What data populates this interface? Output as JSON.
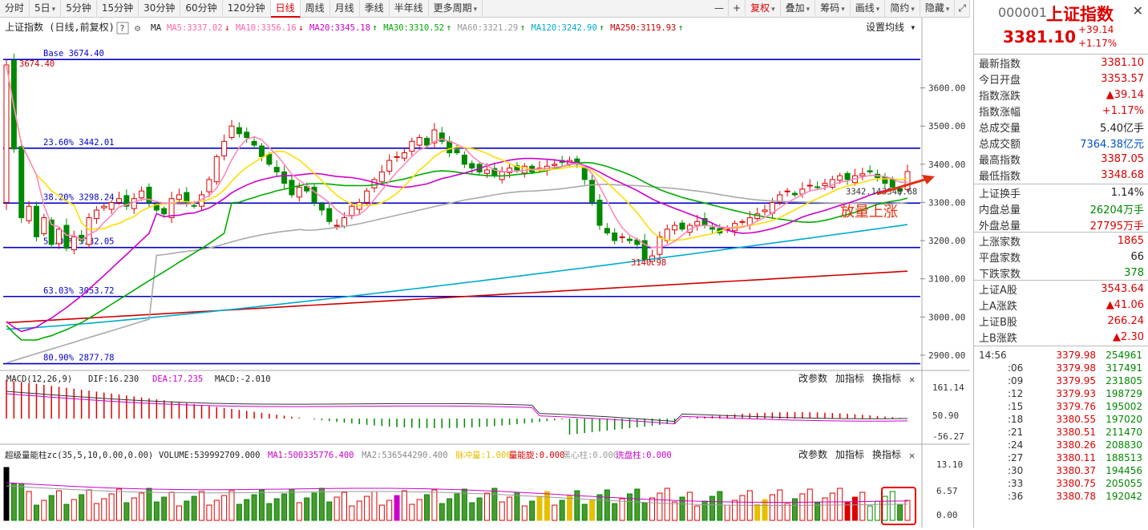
{
  "toolbar": {
    "left_buttons": [
      "分时",
      "5日",
      "5分钟",
      "15分钟",
      "30分钟",
      "60分钟",
      "120分钟",
      "日线",
      "周线",
      "月线",
      "季线",
      "半年线",
      "更多周期"
    ],
    "active": "日线",
    "right_buttons": [
      "复权",
      "叠加",
      "筹码",
      "画线",
      "简约",
      "隐藏"
    ],
    "nav_buttons": [
      "—",
      "+",
      "─"
    ]
  },
  "chart_header": {
    "title": "上证指数 (日线,前复权)",
    "help": "?",
    "ma_label": "MA",
    "ma_items": [
      {
        "text": "MA5:3337.02",
        "arrow": "↓",
        "color": "#ff66aa"
      },
      {
        "text": "MA10:3356.16",
        "arrow": "↓",
        "color": "#ff66aa"
      },
      {
        "text": "MA20:3345.18",
        "arrow": "↑",
        "color": "#cc00cc"
      },
      {
        "text": "MA30:3310.52",
        "arrow": "↑",
        "color": "#00aa00"
      },
      {
        "text": "MA60:3321.29",
        "arrow": "↑",
        "color": "#999999"
      },
      {
        "text": "MA120:3242.90",
        "arrow": "↑",
        "color": "#00aacc"
      },
      {
        "text": "MA250:3119.93",
        "arrow": "↑",
        "color": "#cc0000"
      }
    ],
    "settings": "设置均线"
  },
  "fib_levels": [
    {
      "label": "Base  3674.40",
      "value": 3674.4
    },
    {
      "label": "23.60% 3442.01",
      "value": 3442.01
    },
    {
      "label": "38.20% 3298.24",
      "value": 3298.24
    },
    {
      "label": "50.00% 3182.05",
      "value": 3182.05
    },
    {
      "label": "63.03% 3053.72",
      "value": 3053.72
    },
    {
      "label": "80.90% 2877.78",
      "value": 2877.78
    }
  ],
  "price_axis": [
    "3600.00",
    "3500.00",
    "3400.00",
    "3300.00",
    "3200.00",
    "3100.00",
    "3000.00",
    "2900.00"
  ],
  "annotations": {
    "high_label": "3674.40",
    "low_label": "3140.98",
    "last_label": "3342.14",
    "last_label2": "3348.68",
    "callout": "放量上涨"
  },
  "macd": {
    "title": "MACD(12,26,9)",
    "dif": "DIF:16.230",
    "dea": "DEA:17.235",
    "macd": "MACD:-2.010",
    "buttons": [
      "改参数",
      "加指标",
      "换指标"
    ],
    "axis": [
      "161.14",
      "50.90",
      "-56.27"
    ]
  },
  "volume": {
    "title": "超级量能柱zc(35,5,10,0.00,0.00)",
    "items": [
      {
        "text": "VOLUME:539992709.000",
        "color": "#222"
      },
      {
        "text": "MA1:500335776.400",
        "color": "#cc00cc"
      },
      {
        "text": "MA2:536544290.400",
        "color": "#888"
      },
      {
        "text": "脉冲量:1.000",
        "color": "#e6c000"
      },
      {
        "text": "量能旋:0.000",
        "color": "#d00"
      },
      {
        "text": "黑心柱:0.000",
        "color": "#999"
      },
      {
        "text": "洗盘柱:0.000",
        "color": "#cc00cc"
      }
    ],
    "buttons": [
      "改参数",
      "加指标",
      "换指标"
    ],
    "axis": [
      "13.10",
      "6.57",
      "0.00"
    ]
  },
  "chart_data": {
    "type": "candlestick",
    "title": "上证指数 (日线,前复权)",
    "ylim": [
      2860,
      3700
    ],
    "ma_values": {
      "MA5": 3337.02,
      "MA10": 3356.16,
      "MA20": 3345.18,
      "MA30": 3310.52,
      "MA60": 3321.29,
      "MA120": 3242.9,
      "MA250": 3119.93
    },
    "closes": [
      3674,
      3440,
      3260,
      3290,
      3210,
      3260,
      3190,
      3230,
      3180,
      3210,
      3200,
      3260,
      3280,
      3290,
      3300,
      3310,
      3290,
      3310,
      3330,
      3300,
      3280,
      3270,
      3310,
      3320,
      3300,
      3290,
      3320,
      3360,
      3420,
      3460,
      3500,
      3480,
      3470,
      3450,
      3420,
      3400,
      3380,
      3350,
      3320,
      3340,
      3330,
      3300,
      3280,
      3250,
      3240,
      3260,
      3290,
      3300,
      3330,
      3360,
      3380,
      3410,
      3420,
      3430,
      3460,
      3470,
      3450,
      3490,
      3460,
      3430,
      3430,
      3400,
      3390,
      3380,
      3385,
      3370,
      3380,
      3390,
      3385,
      3395,
      3380,
      3390,
      3395,
      3400,
      3405,
      3410,
      3400,
      3360,
      3300,
      3240,
      3220,
      3200,
      3210,
      3200,
      3190,
      3150,
      3160,
      3210,
      3230,
      3240,
      3230,
      3240,
      3250,
      3240,
      3230,
      3220,
      3230,
      3245,
      3250,
      3260,
      3270,
      3280,
      3300,
      3320,
      3330,
      3320,
      3335,
      3345,
      3340,
      3350,
      3360,
      3370,
      3360,
      3370,
      3375,
      3380,
      3365,
      3350,
      3340,
      3330,
      3381
    ]
  },
  "sidebar": {
    "code": "000001",
    "name": "上证指数",
    "price": "3381.10",
    "change": "+39.14",
    "change_pct": "+1.17%",
    "stats1": [
      {
        "label": "最新指数",
        "value": "3381.10",
        "cls": "red"
      },
      {
        "label": "今日开盘",
        "value": "3353.57",
        "cls": "red"
      },
      {
        "label": "指数涨跌",
        "value": "▲39.14",
        "cls": "red"
      },
      {
        "label": "指数涨幅",
        "value": "+1.17%",
        "cls": "red"
      },
      {
        "label": "总成交量",
        "value": "5.40亿手",
        "cls": ""
      },
      {
        "label": "总成交额",
        "value": "7364.38亿元",
        "cls": "blue"
      },
      {
        "label": "最高指数",
        "value": "3387.05",
        "cls": "red"
      },
      {
        "label": "最低指数",
        "value": "3348.68",
        "cls": "red"
      }
    ],
    "stats2": [
      {
        "label": "上证换手",
        "value": "1.14%",
        "cls": ""
      },
      {
        "label": "内盘总量",
        "value": "26204万手",
        "cls": "green"
      },
      {
        "label": "外盘总量",
        "value": "27795万手",
        "cls": "red"
      }
    ],
    "stats3": [
      {
        "label": "上涨家数",
        "value": "1865",
        "cls": "red"
      },
      {
        "label": "平盘家数",
        "value": "66",
        "cls": ""
      },
      {
        "label": "下跌家数",
        "value": "378",
        "cls": "green"
      }
    ],
    "stats4": [
      {
        "label": "上证A股",
        "value": "3543.64",
        "cls": "red"
      },
      {
        "label": "上A涨跌",
        "value": "▲41.06",
        "cls": "red"
      },
      {
        "label": "上证B股",
        "value": "266.24",
        "cls": "red"
      },
      {
        "label": "上B涨跌",
        "value": "▲2.30",
        "cls": "red"
      }
    ],
    "ticks": [
      {
        "t": "14:56",
        "p": "3379.98",
        "v": "254961"
      },
      {
        "t": ":06",
        "p": "3379.98",
        "v": "317491"
      },
      {
        "t": ":09",
        "p": "3379.95",
        "v": "231805"
      },
      {
        "t": ":12",
        "p": "3379.93",
        "v": "198729"
      },
      {
        "t": ":15",
        "p": "3379.76",
        "v": "195002"
      },
      {
        "t": ":18",
        "p": "3380.55",
        "v": "197020"
      },
      {
        "t": ":21",
        "p": "3380.51",
        "v": "211470"
      },
      {
        "t": ":24",
        "p": "3380.26",
        "v": "208830"
      },
      {
        "t": ":27",
        "p": "3380.11",
        "v": "188513"
      },
      {
        "t": ":30",
        "p": "3380.37",
        "v": "194456"
      },
      {
        "t": ":33",
        "p": "3380.75",
        "v": "205055"
      },
      {
        "t": ":36",
        "p": "3380.78",
        "v": "192042"
      }
    ]
  }
}
